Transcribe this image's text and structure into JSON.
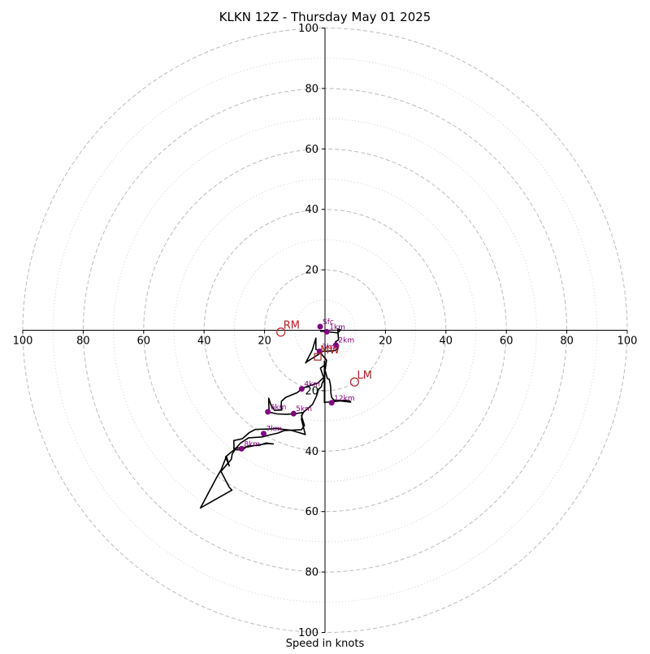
{
  "chart_data": {
    "type": "line",
    "title": "KLKN 12Z - Thursday May 01 2025",
    "xlabel": "Speed in knots",
    "ylabel": "",
    "xlim": [
      -100,
      100
    ],
    "ylim": [
      -100,
      100
    ],
    "xticks": [
      {
        "value": -100,
        "label": "100"
      },
      {
        "value": -80,
        "label": "80"
      },
      {
        "value": -60,
        "label": "60"
      },
      {
        "value": -40,
        "label": "40"
      },
      {
        "value": -20,
        "label": "20"
      },
      {
        "value": 20,
        "label": "20"
      },
      {
        "value": 40,
        "label": "40"
      },
      {
        "value": 60,
        "label": "60"
      },
      {
        "value": 80,
        "label": "80"
      },
      {
        "value": 100,
        "label": "100"
      }
    ],
    "yticks": [
      {
        "value": 100,
        "label": "100"
      },
      {
        "value": 80,
        "label": "80"
      },
      {
        "value": 60,
        "label": "60"
      },
      {
        "value": 40,
        "label": "40"
      },
      {
        "value": 20,
        "label": "20"
      },
      {
        "value": -20,
        "label": "20"
      },
      {
        "value": -40,
        "label": "40"
      },
      {
        "value": -60,
        "label": "60"
      },
      {
        "value": -80,
        "label": "80"
      },
      {
        "value": -100,
        "label": "100"
      }
    ],
    "rings_major": [
      20,
      40,
      60,
      80,
      100
    ],
    "rings_minor": [
      10,
      30,
      50,
      70,
      90
    ],
    "grid": true,
    "colors": {
      "hodograph": "#000000",
      "level_marker": "#800080",
      "motion_marker": "#b22222",
      "grid": "#bbbbbb"
    },
    "hodograph": [
      [
        -1.6,
        -0.3
      ],
      [
        1.2,
        -0.5
      ],
      [
        3.6,
        -0.8
      ],
      [
        4.2,
        -0.9
      ],
      [
        5.2,
        0.1
      ],
      [
        4.2,
        0.4
      ],
      [
        4.5,
        -3.2
      ],
      [
        3.5,
        -3.8
      ],
      [
        3.5,
        -4.2
      ],
      [
        4.2,
        -5.7
      ],
      [
        3.8,
        -6.5
      ],
      [
        2.9,
        -6.8
      ],
      [
        -0.5,
        -7.0
      ],
      [
        -1.9,
        -6.8
      ],
      [
        -3.0,
        -6.3
      ],
      [
        -3.0,
        -5.6
      ],
      [
        -3.0,
        -2.6
      ],
      [
        -4.2,
        -6.5
      ],
      [
        -6.4,
        -10.8
      ],
      [
        -6.0,
        -10.4
      ],
      [
        -4.4,
        -9.4
      ],
      [
        -1.1,
        -7.3
      ],
      [
        -1.8,
        -6.9
      ],
      [
        -1.9,
        -7.0
      ],
      [
        0.5,
        -9.9
      ],
      [
        -0.3,
        -15.5
      ],
      [
        -2.4,
        -17.5
      ],
      [
        -7.1,
        -19.0
      ],
      [
        -9.3,
        -20.7
      ],
      [
        -13.0,
        -22.2
      ],
      [
        -14.4,
        -23.5
      ],
      [
        -14.5,
        -25.0
      ],
      [
        -14.3,
        -26.4
      ],
      [
        -16.7,
        -26.5
      ],
      [
        -17.9,
        -24.7
      ],
      [
        -18.6,
        -22.5
      ],
      [
        -18.6,
        -24.4
      ],
      [
        -18.5,
        -26.5
      ],
      [
        -18.9,
        -27.0
      ],
      [
        -15.9,
        -27.7
      ],
      [
        -12.7,
        -27.8
      ],
      [
        -10.4,
        -27.7
      ],
      [
        -7.2,
        -27.2
      ],
      [
        -7.5,
        -27.5
      ],
      [
        -7.8,
        -29.5
      ],
      [
        -6.5,
        -34.5
      ],
      [
        -9.5,
        -33.6
      ],
      [
        -11.3,
        -33.1
      ],
      [
        -16.4,
        -32.5
      ],
      [
        -18.3,
        -32.7
      ],
      [
        -23.0,
        -32.8
      ],
      [
        -25.1,
        -33.9
      ],
      [
        -27.3,
        -35.9
      ],
      [
        -30.2,
        -36.5
      ],
      [
        -30.1,
        -38.4
      ],
      [
        -30.2,
        -39.1
      ],
      [
        -25.5,
        -38.6
      ],
      [
        -22.5,
        -38.0
      ],
      [
        -22.0,
        -37.9
      ],
      [
        -18.8,
        -37.5
      ],
      [
        -17.1,
        -37.6
      ],
      [
        -19.5,
        -37.3
      ],
      [
        -21.5,
        -38.0
      ],
      [
        -25.4,
        -38.3
      ],
      [
        -27.5,
        -39.6
      ],
      [
        -30.0,
        -39.5
      ],
      [
        -32.9,
        -41.9
      ],
      [
        -31.7,
        -44.9
      ],
      [
        -32.6,
        -41.7
      ],
      [
        -34.4,
        -46.3
      ],
      [
        -35.5,
        -48.1
      ],
      [
        -41.2,
        -58.8
      ],
      [
        -30.8,
        -52.9
      ],
      [
        -31.7,
        -51.9
      ],
      [
        -34.4,
        -46.7
      ],
      [
        -31.0,
        -42.7
      ],
      [
        -30.7,
        -41.0
      ],
      [
        -29.7,
        -39.3
      ],
      [
        -28.0,
        -37.4
      ],
      [
        -25.3,
        -35.6
      ],
      [
        -20.7,
        -35.3
      ],
      [
        -18.6,
        -34.7
      ],
      [
        -15.5,
        -34.0
      ],
      [
        -13.5,
        -33.2
      ],
      [
        -10.0,
        -33.0
      ],
      [
        -7.8,
        -32.9
      ],
      [
        -6.8,
        -31.5
      ],
      [
        -7.8,
        -28.3
      ],
      [
        -7.0,
        -27.0
      ],
      [
        -5.5,
        -25.8
      ],
      [
        -4.1,
        -24.5
      ],
      [
        -3.5,
        -23.2
      ],
      [
        -2.9,
        -22.0
      ],
      [
        -2.5,
        -20.8
      ],
      [
        -2.2,
        -19.6
      ],
      [
        -1.2,
        -18.7
      ],
      [
        -1.0,
        -17.7
      ],
      [
        -0.5,
        -16.7
      ],
      [
        -0.2,
        -15.6
      ],
      [
        -0.7,
        -15.0
      ],
      [
        -1.5,
        -12.5
      ],
      [
        -0.2,
        -11.6
      ],
      [
        -0.2,
        -13.0
      ],
      [
        0.2,
        -13.8
      ],
      [
        0.5,
        -15.0
      ],
      [
        0.8,
        -16.0
      ],
      [
        1.4,
        -16.2
      ],
      [
        1.7,
        -17.5
      ],
      [
        1.9,
        -19.0
      ],
      [
        1.9,
        -20.5
      ],
      [
        2.2,
        -22.2
      ],
      [
        2.9,
        -23.1
      ],
      [
        4.5,
        -23.2
      ],
      [
        6.5,
        -23.2
      ],
      [
        8.2,
        -23.4
      ],
      [
        8.5,
        -23.8
      ],
      [
        5.0,
        -23.4
      ],
      [
        2.8,
        -23.6
      ],
      [
        2.2,
        -23.3
      ],
      [
        2.1,
        -23.5
      ],
      [
        1.5,
        -23.7
      ],
      [
        0.6,
        -23.8
      ],
      [
        -0.2,
        -23.9
      ],
      [
        -0.2,
        -10.5
      ],
      [
        -0.3,
        -10.2
      ]
    ],
    "levels": [
      {
        "label": "Sfc",
        "x": -1.6,
        "y": 1.2
      },
      {
        "label": "1km",
        "x": 0.6,
        "y": -0.5
      },
      {
        "label": "2km",
        "x": 3.6,
        "y": -4.9
      },
      {
        "label": "3km",
        "x": -1.8,
        "y": -7.0
      },
      {
        "label": "4km",
        "x": -7.7,
        "y": -19.4
      },
      {
        "label": "5km",
        "x": -10.4,
        "y": -27.6
      },
      {
        "label": "6km",
        "x": -18.9,
        "y": -27.0
      },
      {
        "label": "7km",
        "x": -20.3,
        "y": -34.2
      },
      {
        "label": "8km",
        "x": -27.6,
        "y": -39.2
      },
      {
        "label": "12km",
        "x": 2.2,
        "y": -24.0
      }
    ],
    "storm_motion": [
      {
        "label": "RM",
        "x": -14.6,
        "y": -0.6,
        "marker": "circle"
      },
      {
        "label": "LM",
        "x": 9.8,
        "y": -17.1,
        "marker": "circle"
      },
      {
        "label": "MW",
        "x": -2.4,
        "y": -8.8,
        "marker": "square"
      }
    ]
  }
}
